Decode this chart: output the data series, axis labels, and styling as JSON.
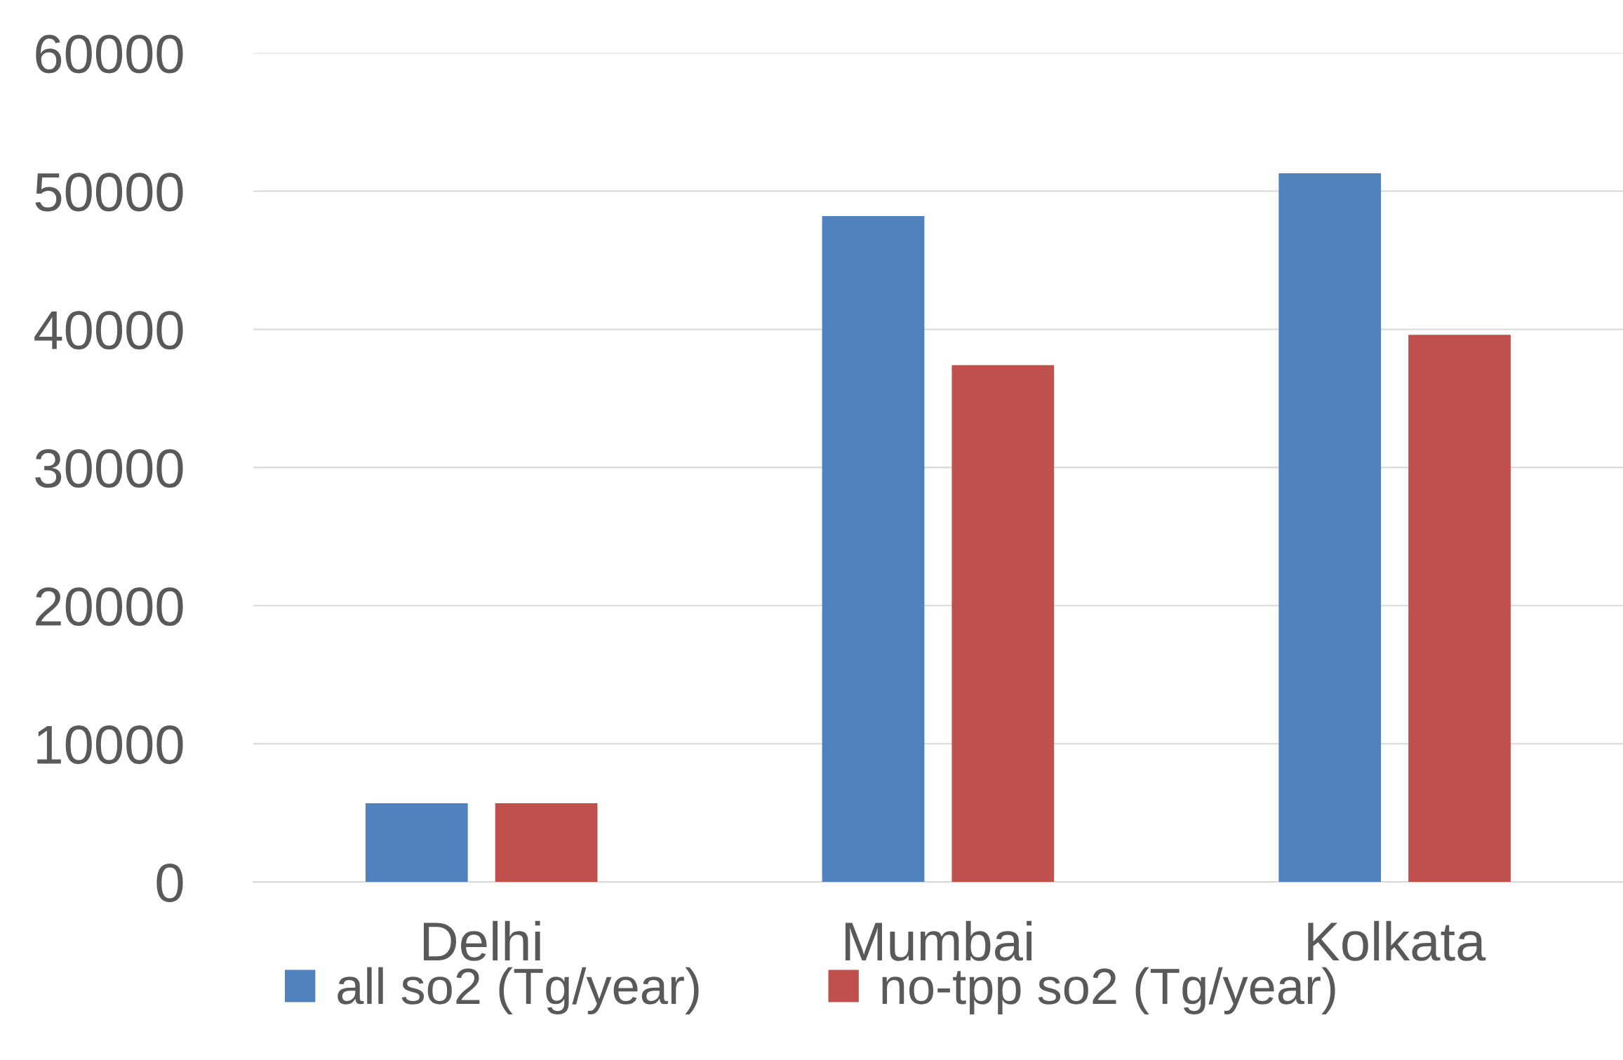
{
  "chart_data": {
    "type": "bar",
    "categories": [
      "Delhi",
      "Mumbai",
      "Kolkata"
    ],
    "series": [
      {
        "name": "all so2 (Tg/year)",
        "color": "#4f81bd",
        "values": [
          5700,
          48200,
          51300
        ]
      },
      {
        "name": "no-tpp so2 (Tg/year)",
        "color": "#c0504d",
        "values": [
          5700,
          37400,
          39600
        ]
      }
    ],
    "ylim": [
      0,
      60000
    ],
    "yticks": [
      0,
      10000,
      20000,
      30000,
      40000,
      50000,
      60000
    ],
    "grid": "y",
    "legend": "bottom"
  }
}
